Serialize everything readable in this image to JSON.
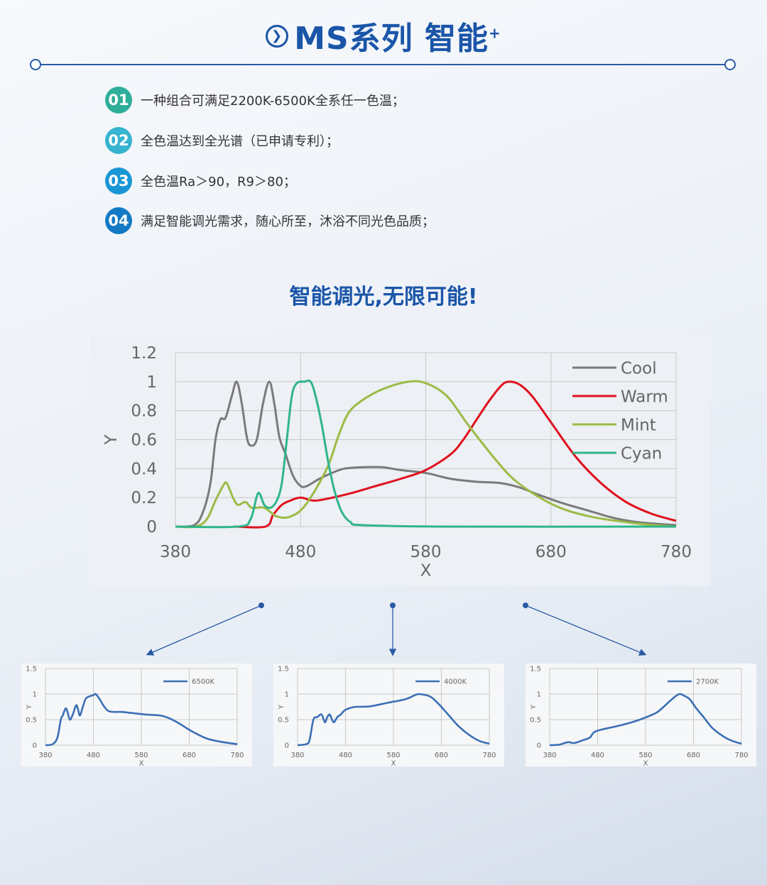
{
  "header": {
    "title": "MS系列  智能",
    "title_sup": "+",
    "icon": "chevron-right-circle-icon",
    "accent": "#1a55a8"
  },
  "features": [
    {
      "num": "01",
      "text": "一种组合可满足2200K-6500K全系任一色温；",
      "color": "#2fae9a"
    },
    {
      "num": "02",
      "text": "全色温达到全光谱（已申请专利）；",
      "color": "#35b3cf"
    },
    {
      "num": "03",
      "text": "全色温Ra＞90，R9＞80；",
      "color": "#1a96d6"
    },
    {
      "num": "04",
      "text": "满足智能调光需求，随心所至，沐浴不同光色品质；",
      "color": "#1479c4"
    }
  ],
  "subtitle": "智能调光,无限可能!",
  "chart_data": [
    {
      "type": "line",
      "xlabel": "X",
      "ylabel": "Y",
      "xlim": [
        380,
        780
      ],
      "ylim": [
        0,
        1.2
      ],
      "xticks": [
        "380",
        "480",
        "580",
        "680",
        "780"
      ],
      "yticks": [
        "0",
        "0.2",
        "0.4",
        "0.6",
        "0.8",
        "1",
        "1.2"
      ],
      "grid": true,
      "legend": "top-right",
      "series": [
        {
          "name": "Cool",
          "color": "#7a7a7a",
          "points": [
            [
              380,
              0
            ],
            [
              395,
              0.01
            ],
            [
              402,
              0.1
            ],
            [
              408,
              0.3
            ],
            [
              412,
              0.6
            ],
            [
              416,
              0.74
            ],
            [
              420,
              0.75
            ],
            [
              425,
              0.9
            ],
            [
              429,
              1.0
            ],
            [
              433,
              0.85
            ],
            [
              437,
              0.62
            ],
            [
              440,
              0.56
            ],
            [
              445,
              0.6
            ],
            [
              450,
              0.85
            ],
            [
              455,
              1.0
            ],
            [
              459,
              0.85
            ],
            [
              463,
              0.62
            ],
            [
              468,
              0.5
            ],
            [
              474,
              0.35
            ],
            [
              480,
              0.28
            ],
            [
              485,
              0.28
            ],
            [
              495,
              0.33
            ],
            [
              505,
              0.37
            ],
            [
              515,
              0.4
            ],
            [
              530,
              0.41
            ],
            [
              545,
              0.41
            ],
            [
              560,
              0.39
            ],
            [
              580,
              0.37
            ],
            [
              600,
              0.33
            ],
            [
              620,
              0.31
            ],
            [
              640,
              0.3
            ],
            [
              655,
              0.27
            ],
            [
              670,
              0.22
            ],
            [
              690,
              0.16
            ],
            [
              710,
              0.11
            ],
            [
              730,
              0.06
            ],
            [
              750,
              0.03
            ],
            [
              780,
              0.01
            ]
          ]
        },
        {
          "name": "Warm",
          "color": "#e0101e",
          "points": [
            [
              427,
              0
            ],
            [
              452,
              0
            ],
            [
              458,
              0.08
            ],
            [
              465,
              0.15
            ],
            [
              472,
              0.18
            ],
            [
              480,
              0.2
            ],
            [
              490,
              0.18
            ],
            [
              500,
              0.19
            ],
            [
              520,
              0.23
            ],
            [
              540,
              0.28
            ],
            [
              560,
              0.33
            ],
            [
              580,
              0.39
            ],
            [
              600,
              0.5
            ],
            [
              610,
              0.6
            ],
            [
              620,
              0.73
            ],
            [
              630,
              0.86
            ],
            [
              640,
              0.97
            ],
            [
              646,
              1.0
            ],
            [
              655,
              0.98
            ],
            [
              665,
              0.9
            ],
            [
              680,
              0.72
            ],
            [
              700,
              0.48
            ],
            [
              720,
              0.3
            ],
            [
              740,
              0.17
            ],
            [
              760,
              0.09
            ],
            [
              780,
              0.04
            ]
          ]
        },
        {
          "name": "Mint",
          "color": "#9bbb45",
          "points": [
            [
              380,
              0
            ],
            [
              396,
              0
            ],
            [
              405,
              0.05
            ],
            [
              412,
              0.18
            ],
            [
              418,
              0.28
            ],
            [
              421,
              0.3
            ],
            [
              426,
              0.2
            ],
            [
              430,
              0.15
            ],
            [
              436,
              0.17
            ],
            [
              441,
              0.13
            ],
            [
              451,
              0.13
            ],
            [
              461,
              0.07
            ],
            [
              472,
              0.07
            ],
            [
              484,
              0.15
            ],
            [
              501,
              0.4
            ],
            [
              510,
              0.62
            ],
            [
              518,
              0.78
            ],
            [
              529,
              0.87
            ],
            [
              546,
              0.95
            ],
            [
              566,
              1.0
            ],
            [
              580,
              0.99
            ],
            [
              597,
              0.9
            ],
            [
              614,
              0.7
            ],
            [
              637,
              0.45
            ],
            [
              654,
              0.3
            ],
            [
              682,
              0.15
            ],
            [
              711,
              0.07
            ],
            [
              750,
              0.02
            ],
            [
              780,
              0
            ]
          ]
        },
        {
          "name": "Cyan",
          "color": "#2fb58a",
          "points": [
            [
              380,
              0
            ],
            [
              430,
              0
            ],
            [
              440,
              0.05
            ],
            [
              446,
              0.23
            ],
            [
              451,
              0.15
            ],
            [
              456,
              0.13
            ],
            [
              461,
              0.18
            ],
            [
              465,
              0.3
            ],
            [
              469,
              0.6
            ],
            [
              473,
              0.9
            ],
            [
              477,
              0.99
            ],
            [
              483,
              1.0
            ],
            [
              488,
              1.0
            ],
            [
              492,
              0.9
            ],
            [
              497,
              0.7
            ],
            [
              502,
              0.45
            ],
            [
              507,
              0.25
            ],
            [
              513,
              0.1
            ],
            [
              520,
              0.03
            ],
            [
              530,
              0.01
            ],
            [
              600,
              0
            ],
            [
              780,
              0
            ]
          ]
        }
      ]
    },
    {
      "type": "line",
      "xlabel": "X",
      "ylabel": "Y",
      "xlim": [
        380,
        780
      ],
      "ylim": [
        0,
        1.5
      ],
      "xticks": [
        "380",
        "480",
        "580",
        "680",
        "780"
      ],
      "yticks": [
        "0",
        "0.5",
        "1",
        "1.5"
      ],
      "grid": true,
      "legend": "top-right",
      "series": [
        {
          "name": "6500K",
          "color": "#3b6fb5",
          "points": [
            [
              380,
              0
            ],
            [
              395,
              0.02
            ],
            [
              405,
              0.15
            ],
            [
              412,
              0.5
            ],
            [
              416,
              0.58
            ],
            [
              422,
              0.72
            ],
            [
              426,
              0.65
            ],
            [
              431,
              0.5
            ],
            [
              437,
              0.6
            ],
            [
              444,
              0.78
            ],
            [
              448,
              0.7
            ],
            [
              452,
              0.58
            ],
            [
              458,
              0.75
            ],
            [
              465,
              0.92
            ],
            [
              480,
              0.98
            ],
            [
              485,
              1.0
            ],
            [
              493,
              0.9
            ],
            [
              503,
              0.75
            ],
            [
              514,
              0.66
            ],
            [
              540,
              0.65
            ],
            [
              560,
              0.63
            ],
            [
              590,
              0.6
            ],
            [
              620,
              0.58
            ],
            [
              640,
              0.52
            ],
            [
              660,
              0.42
            ],
            [
              680,
              0.3
            ],
            [
              700,
              0.2
            ],
            [
              720,
              0.12
            ],
            [
              750,
              0.06
            ],
            [
              780,
              0.02
            ]
          ]
        }
      ]
    },
    {
      "type": "line",
      "xlabel": "X",
      "ylabel": "Y",
      "xlim": [
        380,
        780
      ],
      "ylim": [
        0,
        1.5
      ],
      "xticks": [
        "380",
        "480",
        "580",
        "680",
        "780"
      ],
      "yticks": [
        "0",
        "0.5",
        "1",
        "1.5"
      ],
      "grid": true,
      "legend": "top-right",
      "series": [
        {
          "name": "4000K",
          "color": "#3b6fb5",
          "points": [
            [
              380,
              0
            ],
            [
              398,
              0.02
            ],
            [
              405,
              0.1
            ],
            [
              413,
              0.5
            ],
            [
              421,
              0.55
            ],
            [
              430,
              0.6
            ],
            [
              437,
              0.45
            ],
            [
              442,
              0.55
            ],
            [
              447,
              0.6
            ],
            [
              452,
              0.5
            ],
            [
              456,
              0.45
            ],
            [
              463,
              0.55
            ],
            [
              470,
              0.6
            ],
            [
              478,
              0.68
            ],
            [
              487,
              0.72
            ],
            [
              501,
              0.75
            ],
            [
              531,
              0.76
            ],
            [
              568,
              0.83
            ],
            [
              605,
              0.9
            ],
            [
              625,
              0.98
            ],
            [
              635,
              1.0
            ],
            [
              657,
              0.95
            ],
            [
              675,
              0.8
            ],
            [
              694,
              0.6
            ],
            [
              715,
              0.38
            ],
            [
              738,
              0.2
            ],
            [
              760,
              0.08
            ],
            [
              780,
              0.03
            ]
          ]
        }
      ]
    },
    {
      "type": "line",
      "xlabel": "X",
      "ylabel": "Y",
      "xlim": [
        380,
        780
      ],
      "ylim": [
        0,
        1.5
      ],
      "xticks": [
        "380",
        "480",
        "580",
        "680",
        "780"
      ],
      "yticks": [
        "0",
        "0.5",
        "1",
        "1.5"
      ],
      "grid": true,
      "legend": "top-right",
      "series": [
        {
          "name": "2700K",
          "color": "#3b6fb5",
          "points": [
            [
              380,
              0
            ],
            [
              400,
              0.01
            ],
            [
              410,
              0.04
            ],
            [
              420,
              0.06
            ],
            [
              428,
              0.04
            ],
            [
              435,
              0.05
            ],
            [
              450,
              0.1
            ],
            [
              464,
              0.15
            ],
            [
              472,
              0.25
            ],
            [
              486,
              0.3
            ],
            [
              505,
              0.34
            ],
            [
              524,
              0.38
            ],
            [
              548,
              0.44
            ],
            [
              568,
              0.5
            ],
            [
              590,
              0.58
            ],
            [
              605,
              0.65
            ],
            [
              620,
              0.77
            ],
            [
              635,
              0.9
            ],
            [
              650,
              1.0
            ],
            [
              660,
              0.97
            ],
            [
              672,
              0.9
            ],
            [
              686,
              0.72
            ],
            [
              701,
              0.55
            ],
            [
              720,
              0.33
            ],
            [
              746,
              0.15
            ],
            [
              765,
              0.07
            ],
            [
              780,
              0.03
            ]
          ]
        }
      ]
    }
  ]
}
